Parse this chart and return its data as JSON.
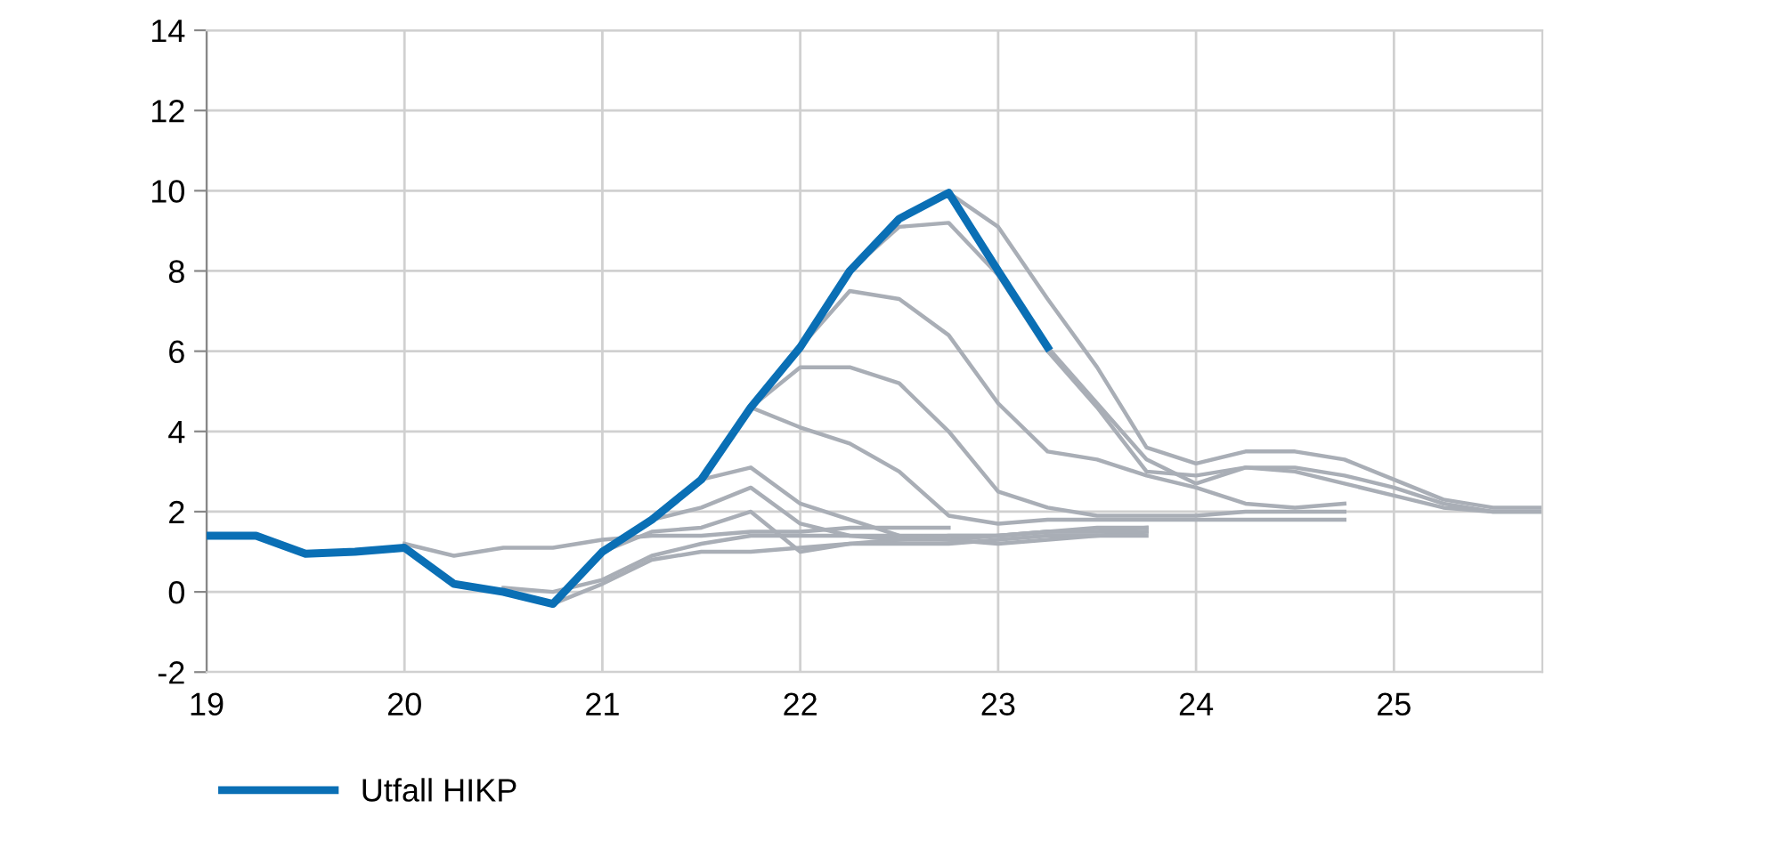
{
  "chart_data": {
    "type": "line",
    "xlim": [
      19,
      25.75
    ],
    "xticks": [
      19,
      20,
      21,
      22,
      23,
      24,
      25
    ],
    "ylim": [
      -2,
      14
    ],
    "yticks": [
      -2,
      0,
      2,
      4,
      6,
      8,
      10,
      12,
      14
    ],
    "grid": true,
    "legend": "bottom left",
    "marker": "none",
    "line_style": "solid",
    "series": [
      {
        "color": "#a9aeb6",
        "x": [
          20,
          20.25,
          20.5,
          20.75,
          21,
          21.25,
          21.5,
          21.75,
          22,
          22.25,
          22.5,
          22.75
        ],
        "values": [
          1.2,
          0.9,
          1.1,
          1.1,
          1.3,
          1.4,
          1.4,
          1.5,
          1.5,
          1.6,
          1.6,
          1.6
        ]
      },
      {
        "color": "#a9aeb6",
        "x": [
          20.5,
          20.75,
          21,
          21.25,
          21.5,
          21.75,
          22,
          22.25,
          22.5,
          22.75,
          23,
          23.25,
          23.5,
          23.75
        ],
        "values": [
          0.1,
          0.0,
          0.3,
          0.9,
          1.2,
          1.4,
          1.4,
          1.4,
          1.4,
          1.4,
          1.4,
          1.5,
          1.5,
          1.6
        ]
      },
      {
        "color": "#a9aeb6",
        "x": [
          20.75,
          21,
          21.25,
          21.5,
          21.75,
          22,
          22.25,
          22.5,
          22.75,
          23,
          23.25,
          23.5,
          23.75
        ],
        "values": [
          -0.3,
          0.2,
          0.8,
          1.0,
          1.0,
          1.1,
          1.2,
          1.2,
          1.2,
          1.3,
          1.4,
          1.4,
          1.5
        ]
      },
      {
        "color": "#a9aeb6",
        "x": [
          21,
          21.25,
          21.5,
          21.75,
          22,
          22.25,
          22.5,
          22.75,
          23,
          23.25,
          23.5,
          23.75
        ],
        "values": [
          1.0,
          1.5,
          1.6,
          2.0,
          1.0,
          1.2,
          1.3,
          1.4,
          1.4,
          1.5,
          1.5,
          1.5
        ]
      },
      {
        "color": "#a9aeb6",
        "x": [
          21.25,
          21.5,
          21.75,
          22,
          22.25,
          22.5,
          22.75,
          23,
          23.25,
          23.5,
          23.75
        ],
        "values": [
          1.8,
          2.1,
          2.6,
          1.7,
          1.4,
          1.3,
          1.3,
          1.4,
          1.5,
          1.6,
          1.6
        ]
      },
      {
        "color": "#a9aeb6",
        "x": [
          21.5,
          21.75,
          22,
          22.25,
          22.5,
          22.75,
          23,
          23.25,
          23.5,
          23.75
        ],
        "values": [
          2.8,
          3.1,
          2.2,
          1.8,
          1.4,
          1.3,
          1.2,
          1.3,
          1.4,
          1.4
        ]
      },
      {
        "color": "#a9aeb6",
        "x": [
          21.75,
          22,
          22.25,
          22.5,
          22.75,
          23,
          23.25,
          23.5,
          23.75,
          24,
          24.25,
          24.5,
          24.75
        ],
        "values": [
          4.6,
          4.1,
          3.7,
          3.0,
          1.9,
          1.7,
          1.8,
          1.8,
          1.8,
          1.8,
          1.8,
          1.8,
          1.8
        ]
      },
      {
        "color": "#a9aeb6",
        "x": [
          21.75,
          22,
          22.25,
          22.5,
          22.75,
          23,
          23.25,
          23.5,
          23.75,
          24,
          24.25,
          24.5,
          24.75
        ],
        "values": [
          4.6,
          5.6,
          5.6,
          5.2,
          4.0,
          2.5,
          2.1,
          1.9,
          1.9,
          1.9,
          2.0,
          2.0,
          2.0
        ]
      },
      {
        "color": "#a9aeb6",
        "x": [
          22,
          22.25,
          22.5,
          22.75,
          23,
          23.25,
          23.5,
          23.75,
          24,
          24.25,
          24.5,
          24.75
        ],
        "values": [
          6.1,
          7.5,
          7.3,
          6.4,
          4.7,
          3.5,
          3.3,
          2.9,
          2.6,
          2.2,
          2.1,
          2.2
        ]
      },
      {
        "color": "#a9aeb6",
        "x": [
          22.25,
          22.5,
          22.75,
          23,
          23.25,
          23.5,
          23.75,
          24,
          24.25,
          24.5,
          24.75,
          25,
          25.25,
          25.5,
          25.75
        ],
        "values": [
          8.0,
          9.1,
          9.2,
          7.9,
          6.0,
          4.6,
          3.0,
          2.9,
          3.1,
          3.1,
          2.9,
          2.6,
          2.2,
          2.0,
          2.0
        ]
      },
      {
        "color": "#a9aeb6",
        "x": [
          22.75,
          23,
          23.25,
          23.5,
          23.75,
          24,
          24.25,
          24.5,
          24.75,
          25,
          25.25,
          25.5,
          25.75
        ],
        "values": [
          9.95,
          9.1,
          7.3,
          5.6,
          3.6,
          3.2,
          3.5,
          3.5,
          3.3,
          2.8,
          2.3,
          2.1,
          2.1
        ]
      },
      {
        "color": "#a9aeb6",
        "x": [
          23.25,
          23.5,
          23.75,
          24,
          24.25,
          24.5,
          24.75,
          25,
          25.25,
          25.5,
          25.75
        ],
        "values": [
          6.1,
          4.7,
          3.3,
          2.7,
          3.1,
          3.0,
          2.7,
          2.4,
          2.1,
          2.0,
          2.0
        ]
      },
      {
        "name": "Utfall HIKP",
        "color": "#0a6fb5",
        "x": [
          19,
          19.25,
          19.5,
          19.75,
          20,
          20.25,
          20.5,
          20.75,
          21,
          21.25,
          21.5,
          21.75,
          22,
          22.25,
          22.5,
          22.75,
          23,
          23.25
        ],
        "values": [
          1.4,
          1.4,
          0.95,
          1.0,
          1.1,
          0.2,
          0.0,
          -0.3,
          1.0,
          1.8,
          2.8,
          4.6,
          6.1,
          8.0,
          9.3,
          9.95,
          8.0,
          6.1
        ]
      }
    ]
  }
}
